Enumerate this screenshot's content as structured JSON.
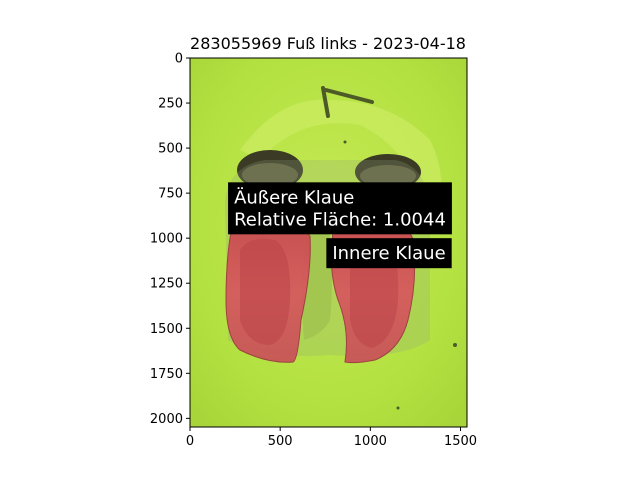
{
  "chart_data": {
    "type": "image",
    "title": "283055969 Fuß links - 2023-04-18",
    "xlabel": "",
    "ylabel": "",
    "xlim": [
      0,
      1536
    ],
    "ylim": [
      2048,
      0
    ],
    "x_ticks": [
      0,
      500,
      1000,
      1500
    ],
    "y_ticks": [
      0,
      250,
      500,
      750,
      1000,
      1250,
      1500,
      1750,
      2000
    ],
    "annotations": [
      {
        "name": "aeussere-klaue",
        "lines": [
          "Äußere Klaue",
          "Relative Fläche: 1.0044"
        ],
        "anchor": [
          200,
          690
        ]
      },
      {
        "name": "innere-klaue",
        "lines": [
          "Innere Klaue"
        ],
        "anchor": [
          745,
          1000
        ]
      }
    ],
    "regions": [
      {
        "name": "outer-claw-mask",
        "label": "Äußere Klaue",
        "color": "#d4555a"
      },
      {
        "name": "inner-claw-mask",
        "label": "Innere Klaue",
        "color": "#d4555a"
      }
    ]
  },
  "colors": {
    "background_green": "#b3e141",
    "mask_red": "#d4555a",
    "label_box": "#000000",
    "label_text": "#ffffff"
  }
}
